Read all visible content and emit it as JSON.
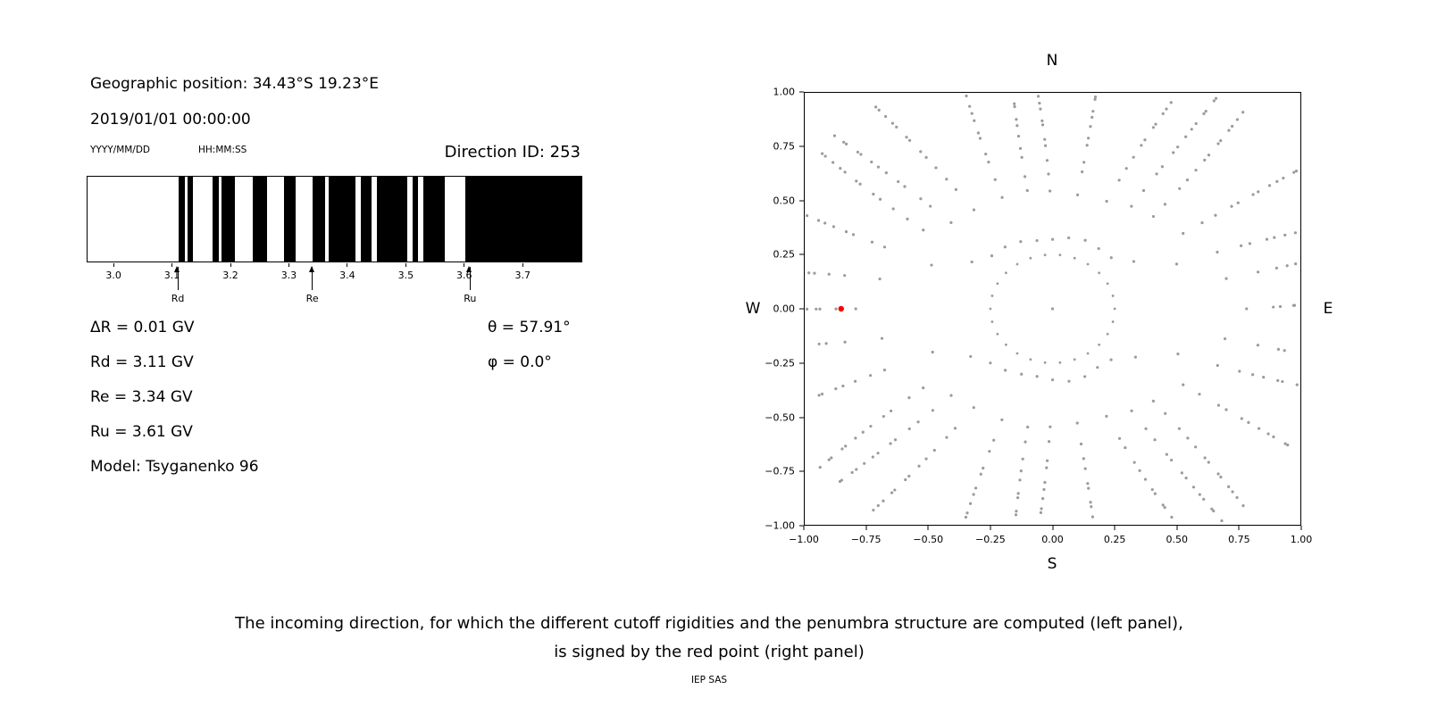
{
  "left_panel": {
    "geo_position": "Geographic position: 34.43°S 19.23°E",
    "datetime": "2019/01/01 00:00:00",
    "date_format_label": "YYYY/MM/DD",
    "time_format_label": "HH:MM:SS",
    "direction_id": "Direction ID: 253",
    "params": [
      "ΔR = 0.01 GV",
      "Rd = 3.11 GV",
      "Re = 3.34 GV",
      "Ru = 3.61 GV",
      "Model: Tsyganenko 96"
    ],
    "theta": "θ = 57.91°",
    "phi": "φ = 0.0°"
  },
  "chart_data": [
    {
      "type": "bar",
      "name": "penumbra-structure",
      "description": "Cosmic-ray penumbra barcode: black bands are rigidity intervals between lower cutoff Rd and upper cutoff Ru, x axis in GV",
      "xlim": [
        2.954,
        3.802
      ],
      "xticks": [
        3.0,
        3.1,
        3.2,
        3.3,
        3.4,
        3.5,
        3.6,
        3.7
      ],
      "black_intervals_gv": [
        [
          3.11,
          3.121
        ],
        [
          3.126,
          3.135
        ],
        [
          3.168,
          3.179
        ],
        [
          3.184,
          3.207
        ],
        [
          3.237,
          3.262
        ],
        [
          3.292,
          3.312
        ],
        [
          3.34,
          3.362
        ],
        [
          3.368,
          3.414
        ],
        [
          3.423,
          3.441
        ],
        [
          3.451,
          3.503
        ],
        [
          3.512,
          3.522
        ],
        [
          3.531,
          3.567
        ],
        [
          3.603,
          3.802
        ]
      ],
      "markers": [
        {
          "label": "Rd",
          "x": 3.11
        },
        {
          "label": "Re",
          "x": 3.34
        },
        {
          "label": "Ru",
          "x": 3.61
        }
      ],
      "bar_color": "#000000"
    },
    {
      "type": "scatter",
      "name": "incoming-direction-map",
      "xlim": [
        -1,
        1
      ],
      "ylim": [
        -1,
        1
      ],
      "xtick_labels": [
        "−1.00",
        "−0.75",
        "−0.50",
        "−0.25",
        "0.00",
        "0.25",
        "0.50",
        "0.75",
        "1.00"
      ],
      "ytick_labels": [
        "1.00",
        "0.75",
        "0.50",
        "0.25",
        "0.00",
        "−0.25",
        "−0.50",
        "−0.75",
        "−1.00"
      ],
      "direction_labels": {
        "top": "N",
        "right": "E",
        "bottom": "S",
        "left": "W"
      },
      "dot_color": "#9b9b9b",
      "red_point": {
        "x": -0.85,
        "y": 0.0,
        "color": "#ff0000"
      },
      "pattern": {
        "spokes": 32,
        "dots_per_spoke": 14,
        "r_start": 0.33,
        "r_outer_max": 1.18,
        "inner_ring": {
          "radius": 0.25,
          "dots": 26
        },
        "center_dot": true
      }
    }
  ],
  "caption": {
    "line1": "The incoming direction, for which the different cutoff rigidities and the penumbra structure are computed (left panel),",
    "line2": "is signed by the red point (right panel)",
    "credit": "IEP SAS"
  }
}
